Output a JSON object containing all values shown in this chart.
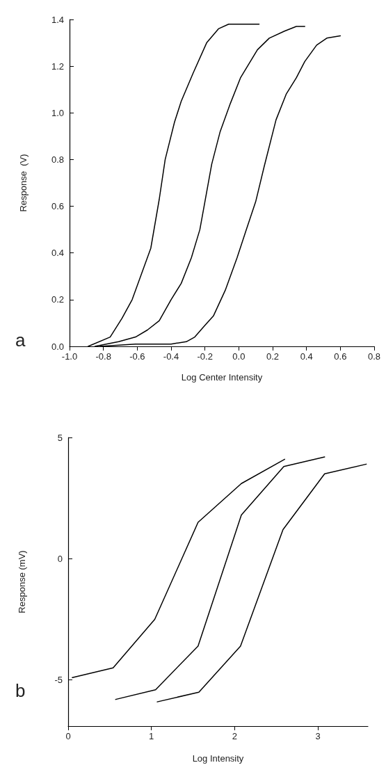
{
  "chart_data": [
    {
      "type": "line",
      "xlabel": "Log Center Intensity",
      "ylabel": "Response  (V)",
      "annotations": [
        "a"
      ],
      "marker": "none",
      "line_style": "solid",
      "grid": false,
      "xlim": [
        -1.0,
        0.8
      ],
      "ylim": [
        0,
        1.4
      ],
      "xticks": [
        {
          "value": -1.0,
          "label": "-1.0"
        },
        {
          "value": -0.8,
          "label": "-0.8"
        },
        {
          "value": -0.6,
          "label": "-0.6"
        },
        {
          "value": -0.4,
          "label": "-0.4"
        },
        {
          "value": -0.2,
          "label": "-0.2"
        },
        {
          "value": 0,
          "label": "0.0"
        },
        {
          "value": 0.2,
          "label": "0.2"
        },
        {
          "value": 0.4,
          "label": "0.4"
        },
        {
          "value": 0.6,
          "label": "0.6"
        },
        {
          "value": 0.8,
          "label": "0.8"
        }
      ],
      "yticks": [
        {
          "value": 0,
          "label": "0.0"
        },
        {
          "value": 0.2,
          "label": "0.2"
        },
        {
          "value": 0.4,
          "label": "0.4"
        },
        {
          "value": 0.6,
          "label": "0.6"
        },
        {
          "value": 0.8,
          "label": "0.8"
        },
        {
          "value": 1.0,
          "label": "1.0"
        },
        {
          "value": 1.2,
          "label": "1.2"
        },
        {
          "value": 1.4,
          "label": "1.4"
        }
      ],
      "series": [
        {
          "color": "#000000",
          "x": [
            -0.89,
            -0.76,
            -0.69,
            -0.63,
            -0.57,
            -0.52,
            -0.47,
            -0.435,
            -0.38,
            -0.34,
            -0.27,
            -0.19,
            -0.12,
            -0.06,
            0.0,
            0.12
          ],
          "values": [
            0,
            0.04,
            0.12,
            0.2,
            0.32,
            0.42,
            0.63,
            0.8,
            0.96,
            1.05,
            1.17,
            1.3,
            1.36,
            1.38,
            1.38,
            1.38
          ]
        },
        {
          "color": "#000000",
          "x": [
            -0.85,
            -0.71,
            -0.61,
            -0.54,
            -0.47,
            -0.4,
            -0.34,
            -0.28,
            -0.23,
            -0.2,
            -0.16,
            -0.11,
            -0.05,
            0.01,
            0.11,
            0.18,
            0.27,
            0.34,
            0.39
          ],
          "values": [
            0,
            0.02,
            0.04,
            0.07,
            0.11,
            0.2,
            0.27,
            0.38,
            0.5,
            0.62,
            0.78,
            0.92,
            1.04,
            1.15,
            1.27,
            1.32,
            1.35,
            1.37,
            1.37
          ]
        },
        {
          "color": "#000000",
          "x": [
            -0.82,
            -0.61,
            -0.4,
            -0.31,
            -0.26,
            -0.2,
            -0.15,
            -0.08,
            -0.01,
            0.04,
            0.1,
            0.15,
            0.22,
            0.28,
            0.34,
            0.39,
            0.46,
            0.52,
            0.6
          ],
          "values": [
            0,
            0.01,
            0.01,
            0.02,
            0.04,
            0.09,
            0.13,
            0.24,
            0.38,
            0.49,
            0.62,
            0.77,
            0.97,
            1.08,
            1.15,
            1.22,
            1.29,
            1.32,
            1.33
          ]
        }
      ]
    },
    {
      "type": "line",
      "xlabel": "Log Intensity",
      "ylabel": "Response (mV)",
      "annotations": [
        "b"
      ],
      "marker": "none",
      "line_style": "solid",
      "grid": false,
      "xlim": [
        0,
        3.6
      ],
      "ylim": [
        -6.9,
        5
      ],
      "xticks": [
        0,
        1,
        2,
        3
      ],
      "yticks": [
        -5,
        0,
        5
      ],
      "series": [
        {
          "color": "#000000",
          "x": [
            0.05,
            0.54,
            1.04,
            1.56,
            2.08,
            2.6
          ],
          "values": [
            -4.9,
            -4.5,
            -2.5,
            1.5,
            3.1,
            4.1
          ]
        },
        {
          "color": "#000000",
          "x": [
            0.57,
            1.05,
            1.56,
            2.08,
            2.59,
            3.08
          ],
          "values": [
            -5.8,
            -5.4,
            -3.6,
            1.8,
            3.8,
            4.2
          ]
        },
        {
          "color": "#000000",
          "x": [
            1.07,
            1.57,
            2.07,
            2.58,
            3.08,
            3.58
          ],
          "values": [
            -5.9,
            -5.5,
            -3.6,
            1.2,
            3.5,
            3.9
          ]
        }
      ]
    }
  ]
}
